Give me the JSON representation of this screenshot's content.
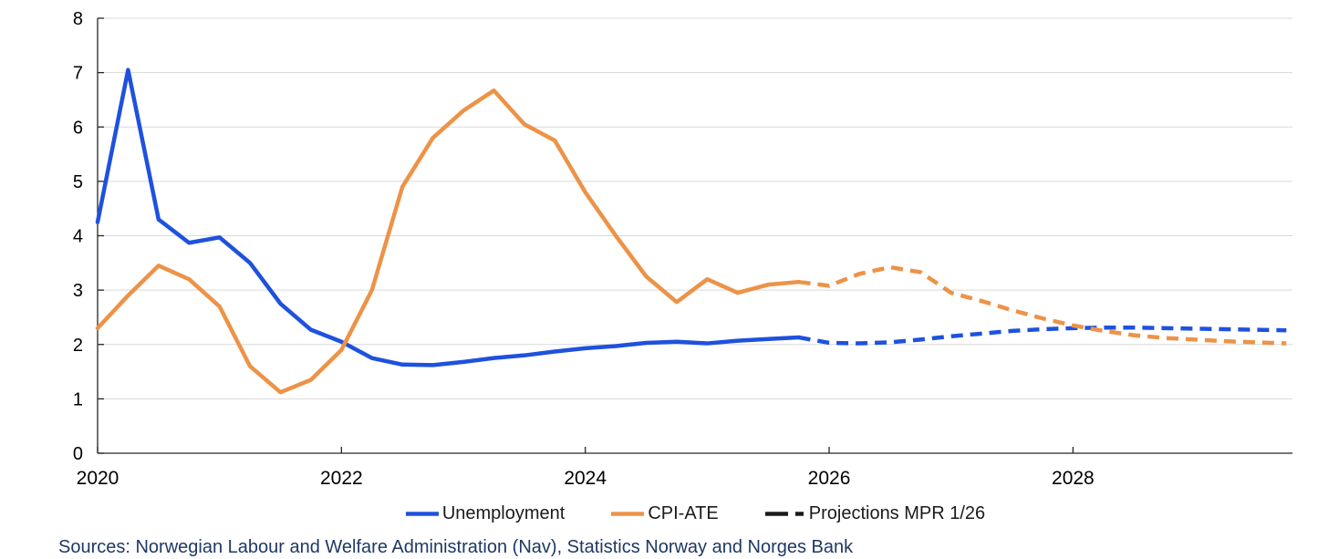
{
  "chart_data": {
    "type": "line",
    "title": "",
    "xlabel": "",
    "ylabel": "",
    "ylim": [
      0,
      8
    ],
    "xlim": [
      2020,
      2029.8
    ],
    "y_ticks": [
      0,
      1,
      2,
      3,
      4,
      5,
      6,
      7,
      8
    ],
    "x_ticks": [
      2020,
      2022,
      2024,
      2026,
      2028
    ],
    "grid": "horizontal-light-gray",
    "legend_position": "bottom-center",
    "series": [
      {
        "name": "Unemployment",
        "color": "#1E51DD",
        "style": "solid",
        "x": [
          2020,
          2020.25,
          2020.5,
          2020.75,
          2021,
          2021.25,
          2021.5,
          2021.75,
          2022,
          2022.25,
          2022.5,
          2022.75,
          2023,
          2023.25,
          2023.5,
          2023.75,
          2024,
          2024.25,
          2024.5,
          2024.75,
          2025,
          2025.25,
          2025.5,
          2025.75
        ],
        "values": [
          4.25,
          7.05,
          4.3,
          3.87,
          3.97,
          3.5,
          2.75,
          2.27,
          2.05,
          1.75,
          1.63,
          1.62,
          1.68,
          1.75,
          1.8,
          1.87,
          1.93,
          1.97,
          2.03,
          2.05,
          2.02,
          2.07,
          2.1,
          2.13
        ]
      },
      {
        "name": "CPI-ATE",
        "color": "#EC9348",
        "style": "solid",
        "x": [
          2020,
          2020.25,
          2020.5,
          2020.75,
          2021,
          2021.25,
          2021.5,
          2021.75,
          2022,
          2022.25,
          2022.5,
          2022.75,
          2023,
          2023.25,
          2023.5,
          2023.75,
          2024,
          2024.25,
          2024.5,
          2024.75,
          2025,
          2025.25,
          2025.5,
          2025.75
        ],
        "values": [
          2.3,
          2.9,
          3.45,
          3.2,
          2.7,
          1.6,
          1.12,
          1.35,
          1.9,
          3.0,
          4.9,
          5.8,
          6.3,
          6.67,
          6.05,
          5.75,
          4.8,
          4.0,
          3.25,
          2.78,
          3.2,
          2.95,
          3.1,
          3.15
        ]
      },
      {
        "name": "Unemployment projection MPR 1/26",
        "color": "#1E51DD",
        "style": "dashed",
        "x": [
          2025.75,
          2026,
          2026.25,
          2026.5,
          2026.75,
          2027,
          2027.25,
          2027.5,
          2027.75,
          2028,
          2028.25,
          2028.5,
          2028.75,
          2029,
          2029.25,
          2029.5,
          2029.75
        ],
        "values": [
          2.13,
          2.03,
          2.02,
          2.04,
          2.09,
          2.15,
          2.2,
          2.25,
          2.28,
          2.3,
          2.31,
          2.31,
          2.3,
          2.29,
          2.28,
          2.27,
          2.26
        ]
      },
      {
        "name": "CPI-ATE projection MPR 1/26",
        "color": "#EC9348",
        "style": "dashed",
        "x": [
          2025.75,
          2026,
          2026.25,
          2026.5,
          2026.75,
          2027,
          2027.25,
          2027.5,
          2027.75,
          2028,
          2028.25,
          2028.5,
          2028.75,
          2029,
          2029.25,
          2029.5,
          2029.75
        ],
        "values": [
          3.15,
          3.08,
          3.3,
          3.42,
          3.33,
          2.95,
          2.8,
          2.63,
          2.48,
          2.35,
          2.25,
          2.17,
          2.12,
          2.09,
          2.06,
          2.04,
          2.02
        ]
      }
    ]
  },
  "legend": {
    "items": [
      {
        "label": "Unemployment",
        "color": "#1E51DD",
        "style": "solid"
      },
      {
        "label": "CPI-ATE",
        "color": "#EC9348",
        "style": "solid"
      },
      {
        "label": "Projections MPR 1/26",
        "color": "#1A1A1A",
        "style": "dashed"
      }
    ]
  },
  "source_text": "Sources: Norwegian Labour and Welfare Administration (Nav), Statistics Norway and Norges Bank",
  "colors": {
    "background": "#FFFFFF",
    "gridline": "#D9D9D9",
    "axis": "#262626",
    "tick_label": "#000000",
    "source_text": "#1F3864"
  }
}
